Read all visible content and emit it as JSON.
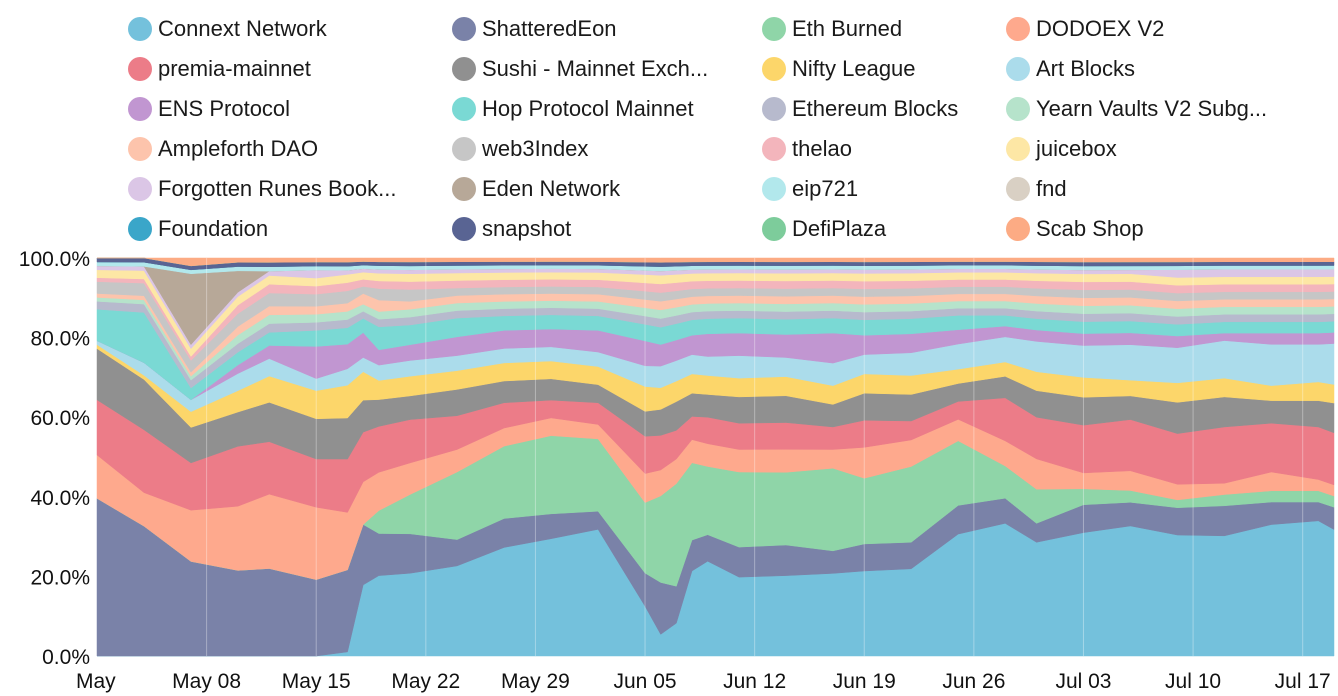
{
  "chart_data": {
    "type": "area",
    "stacked": true,
    "normalized": true,
    "title": "",
    "xlabel": "",
    "ylabel": "",
    "ylim": [
      0,
      100
    ],
    "yticks": [
      0,
      20,
      40,
      60,
      80,
      100
    ],
    "ytick_labels": [
      "0.0%",
      "20.0%",
      "40.0%",
      "60.0%",
      "80.0%",
      "100.0%"
    ],
    "x_start_day": 1,
    "x_end_day": 80,
    "xticks": [
      1,
      8,
      15,
      22,
      29,
      36,
      43,
      50,
      57,
      64,
      71,
      78
    ],
    "xtick_labels": [
      "May",
      "May 08",
      "May 15",
      "May 22",
      "May 29",
      "Jun 05",
      "Jun 12",
      "Jun 19",
      "Jun 26",
      "Jul 03",
      "Jul 10",
      "Jul 17"
    ],
    "x_days": [
      1,
      4,
      7,
      10,
      12,
      15,
      17,
      18,
      19,
      21,
      24,
      27,
      30,
      33,
      36,
      37,
      38,
      39,
      40,
      42,
      45,
      48,
      50,
      53,
      56,
      59,
      61,
      64,
      67,
      70,
      73,
      76,
      79,
      80
    ],
    "legend_order": [
      "Connext Network",
      "ShatteredEon",
      "Eth Burned",
      "DODOEX V2",
      "premia-mainnet",
      "Sushi - Mainnet Exch...",
      "Nifty League",
      "Art Blocks",
      "ENS Protocol",
      "Hop Protocol Mainnet",
      "Ethereum Blocks",
      "Yearn Vaults V2 Subg...",
      "Ampleforth DAO",
      "web3Index",
      "thelao",
      "juicebox",
      "Forgotten Runes Book...",
      "Eden Network",
      "eip721",
      "fnd",
      "Foundation",
      "snapshot",
      "DefiPlaza",
      "Scab Shop"
    ],
    "series": [
      {
        "name": "Connext Network",
        "color": "#74c1dc",
        "values": [
          0,
          0,
          0,
          0,
          0,
          0,
          1,
          20,
          21,
          21,
          24,
          30,
          33,
          35,
          12,
          5,
          8,
          22,
          25,
          21,
          21,
          22,
          22,
          23,
          34,
          37,
          30,
          31,
          33,
          31,
          32,
          35,
          36,
          34
        ]
      },
      {
        "name": "ShatteredEon",
        "color": "#7a82a8",
        "values": [
          40,
          31,
          24,
          20,
          20,
          19,
          20,
          17,
          11,
          10,
          7,
          8,
          7,
          5,
          8,
          12,
          9,
          8,
          7,
          8,
          8,
          6,
          7,
          7,
          8,
          7,
          5,
          7,
          6,
          7,
          8,
          6,
          5,
          6
        ]
      },
      {
        "name": "Eth Burned",
        "color": "#8fd5a8",
        "values": [
          0,
          0,
          0,
          0,
          0,
          0,
          0,
          0,
          6,
          10,
          18,
          20,
          22,
          20,
          17,
          20,
          25,
          20,
          18,
          20,
          19,
          22,
          17,
          20,
          18,
          9,
          9,
          4,
          3,
          2,
          3,
          3,
          3,
          3
        ]
      },
      {
        "name": "DODOEX V2",
        "color": "#fea98d",
        "values": [
          11,
          8,
          13,
          15,
          17,
          18,
          14,
          12,
          10,
          8,
          6,
          5,
          5,
          4,
          7,
          6,
          6,
          6,
          6,
          6,
          6,
          5,
          8,
          7,
          6,
          7,
          8,
          4,
          5,
          4,
          3,
          5,
          3,
          3
        ]
      },
      {
        "name": "premia-mainnet",
        "color": "#ec7c88",
        "values": [
          14,
          15,
          12,
          14,
          12,
          12,
          13,
          14,
          12,
          11,
          9,
          7,
          5,
          6,
          9,
          8,
          7,
          6,
          7,
          7,
          7,
          6,
          7,
          5,
          5,
          12,
          11,
          12,
          13,
          13,
          15,
          13,
          14,
          14
        ]
      },
      {
        "name": "Sushi - Mainnet Exch...",
        "color": "#909090",
        "values": [
          13,
          12,
          9,
          8,
          9,
          10,
          10,
          9,
          7,
          6,
          7,
          6,
          6,
          5,
          6,
          6,
          7,
          6,
          6,
          7,
          7,
          6,
          7,
          7,
          5,
          6,
          7,
          7,
          6,
          8,
          8,
          6,
          7,
          8
        ]
      },
      {
        "name": "Nifty League",
        "color": "#fcd66a",
        "values": [
          1,
          1,
          4,
          5,
          6,
          7,
          8,
          8,
          5,
          5,
          5,
          5,
          5,
          5,
          6,
          5,
          5,
          5,
          5,
          5,
          5,
          5,
          5,
          5,
          4,
          4,
          5,
          5,
          4,
          5,
          5,
          4,
          5,
          5
        ]
      },
      {
        "name": "Art Blocks",
        "color": "#abdceb",
        "values": [
          1,
          3,
          3,
          4,
          4,
          3,
          4,
          4,
          4,
          4,
          4,
          4,
          4,
          4,
          5,
          5,
          5,
          5,
          5,
          6,
          5,
          6,
          5,
          6,
          7,
          7,
          8,
          8,
          9,
          9,
          10,
          11,
          10,
          11
        ]
      },
      {
        "name": "ENS Protocol",
        "color": "#c196d1",
        "values": [
          0,
          0,
          0,
          2,
          3,
          8,
          6,
          7,
          4,
          4,
          5,
          5,
          5,
          6,
          6,
          5,
          5,
          5,
          6,
          6,
          6,
          8,
          5,
          5,
          4,
          3,
          3,
          3,
          3,
          3,
          2,
          3,
          3,
          3
        ]
      },
      {
        "name": "Hop Protocol Mainnet",
        "color": "#7ad9d4",
        "values": [
          8,
          12,
          3,
          3,
          3,
          4,
          4,
          4,
          6,
          5,
          5,
          4,
          4,
          4,
          4,
          4,
          4,
          4,
          4,
          4,
          4,
          4,
          4,
          4,
          4,
          3,
          3,
          3,
          3,
          3,
          3,
          3,
          3,
          3
        ]
      },
      {
        "name": "Ethereum Blocks",
        "color": "#b7bacd",
        "values": [
          2,
          2,
          2,
          2,
          2,
          2,
          2,
          2,
          2,
          2,
          2,
          2,
          2,
          2,
          2,
          2,
          2,
          2,
          2,
          2,
          2,
          2,
          2,
          2,
          2,
          2,
          2,
          2,
          2,
          2,
          2,
          2,
          2,
          2
        ]
      },
      {
        "name": "Yearn Vaults V2 Subg...",
        "color": "#b6e3cb",
        "values": [
          1,
          1,
          1,
          2,
          2,
          2,
          2,
          2,
          2,
          2,
          2,
          2,
          2,
          2,
          2,
          2,
          2,
          2,
          2,
          2,
          2,
          2,
          2,
          2,
          2,
          2,
          2,
          2,
          2,
          2,
          2,
          2,
          2,
          2
        ]
      },
      {
        "name": "Ampleforth DAO",
        "color": "#fdc4ac",
        "values": [
          1,
          1,
          1,
          2,
          2,
          2,
          2,
          3,
          3,
          2,
          2,
          2,
          2,
          2,
          2,
          2,
          2,
          2,
          2,
          2,
          2,
          2,
          2,
          2,
          2,
          2,
          2,
          2,
          2,
          2,
          2,
          2,
          2,
          2
        ]
      },
      {
        "name": "web3Index",
        "color": "#c6c6c6",
        "values": [
          3,
          3,
          3,
          3,
          3,
          3,
          3,
          2,
          3,
          3,
          2,
          2,
          2,
          2,
          2,
          2,
          2,
          2,
          2,
          2,
          2,
          2,
          2,
          2,
          2,
          2,
          2,
          2,
          2,
          2,
          2,
          2,
          2,
          2
        ]
      },
      {
        "name": "thelao",
        "color": "#f3b5bc",
        "values": [
          1,
          1,
          1,
          2,
          2,
          2,
          2,
          2,
          2,
          2,
          2,
          2,
          2,
          2,
          2,
          2,
          2,
          2,
          2,
          2,
          2,
          2,
          2,
          2,
          2,
          2,
          2,
          2,
          2,
          2,
          2,
          2,
          2,
          2
        ]
      },
      {
        "name": "juicebox",
        "color": "#fde7a5",
        "values": [
          2,
          2,
          2,
          2,
          2,
          2,
          2,
          2,
          2,
          2,
          2,
          2,
          2,
          2,
          2,
          2,
          2,
          2,
          2,
          2,
          2,
          2,
          2,
          2,
          2,
          2,
          2,
          2,
          2,
          2,
          2,
          2,
          2,
          2
        ]
      },
      {
        "name": "Forgotten Runes Book...",
        "color": "#dbc6e6",
        "values": [
          1,
          1,
          1,
          1,
          1,
          2,
          1,
          1,
          1,
          1,
          1,
          1,
          1,
          1,
          1,
          1,
          1,
          1,
          1,
          1,
          1,
          1,
          1,
          1,
          1,
          1,
          1,
          1,
          1,
          2,
          2,
          2,
          2,
          2
        ]
      },
      {
        "name": "Eden Network",
        "color": "#b7a898",
        "values": [
          0,
          0,
          18,
          5,
          0,
          0,
          0,
          0,
          0,
          0,
          0,
          0,
          0,
          0,
          0,
          0,
          0,
          0,
          0,
          0,
          0,
          0,
          0,
          0,
          0,
          0,
          0,
          0,
          0,
          0,
          0,
          0,
          0,
          0
        ]
      },
      {
        "name": "eip721",
        "color": "#b2e8ec",
        "values": [
          1,
          1,
          1,
          1,
          1,
          1,
          1,
          1,
          1,
          1,
          1,
          1,
          1,
          1,
          1,
          1,
          1,
          1,
          1,
          1,
          1,
          1,
          1,
          1,
          1,
          1,
          1,
          1,
          1,
          1,
          1,
          1,
          1,
          1
        ]
      },
      {
        "name": "fnd",
        "color": "#d9d0c4",
        "values": [
          0,
          0,
          0,
          0,
          0,
          0,
          0,
          0,
          0,
          0,
          0,
          0,
          0,
          0,
          0,
          0,
          0,
          0,
          0,
          0,
          0,
          0,
          0,
          0,
          0,
          0,
          0,
          0,
          0,
          0,
          0,
          0,
          0,
          0
        ]
      },
      {
        "name": "Foundation",
        "color": "#3aa6c9",
        "values": [
          0,
          0,
          0,
          0,
          0,
          0,
          0,
          0,
          0,
          0,
          0,
          0,
          0,
          0,
          0,
          0,
          0,
          0,
          0,
          0,
          0,
          0,
          0,
          0,
          0,
          0,
          0,
          0,
          0,
          0,
          0,
          0,
          0,
          0
        ]
      },
      {
        "name": "snapshot",
        "color": "#596493",
        "values": [
          1,
          1,
          1,
          1,
          1,
          1,
          1,
          1,
          1,
          1,
          1,
          1,
          1,
          1,
          1,
          1,
          1,
          1,
          1,
          1,
          1,
          1,
          1,
          1,
          1,
          1,
          1,
          1,
          1,
          1,
          1,
          1,
          1,
          1
        ]
      },
      {
        "name": "DefiPlaza",
        "color": "#7dcc9b",
        "values": [
          0,
          0,
          0,
          0,
          0,
          0,
          0,
          0,
          0,
          0,
          0,
          0,
          0,
          0,
          0,
          0,
          0,
          0,
          0,
          0,
          0,
          0,
          0,
          0,
          0,
          0,
          0,
          0,
          0,
          0,
          0,
          0,
          0,
          0
        ]
      },
      {
        "name": "Scab Shop",
        "color": "#fcab84",
        "values": [
          0,
          0,
          2,
          1,
          1,
          1,
          1,
          1,
          1,
          1,
          1,
          1,
          1,
          1,
          1,
          1,
          1,
          1,
          1,
          1,
          1,
          1,
          1,
          1,
          1,
          1,
          1,
          1,
          1,
          1,
          1,
          1,
          1,
          1
        ]
      }
    ]
  }
}
